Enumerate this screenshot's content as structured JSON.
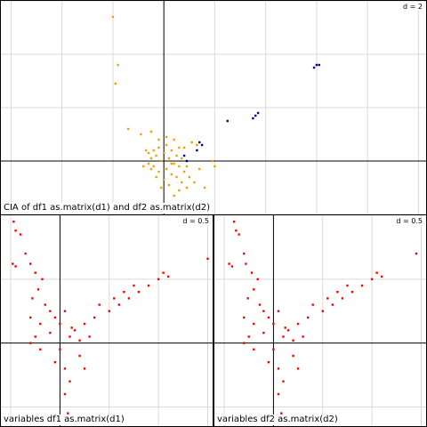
{
  "colors": {
    "background": "#ffffff",
    "grid": "#d9d9d9",
    "axis": "#000000",
    "sites_df1": "#f2a000",
    "sites_df2": "#00008b",
    "variables": "#ff0000"
  },
  "panels": [
    {
      "id": "cia",
      "caption": "CIA of df1 as.matrix(d1) and df2 as.matrix(d2)",
      "d_label": "d = 2"
    },
    {
      "id": "var1",
      "caption": "variables df1 as.matrix(d1)",
      "d_label": "d = 0.5"
    },
    {
      "id": "var2",
      "caption": "variables df2 as.matrix(d2)",
      "d_label": "d = 0.5"
    }
  ],
  "chart_data": [
    {
      "type": "scatter",
      "title": "CIA of df1 as.matrix(d1) and df2 as.matrix(d2)",
      "grid": true,
      "grid_step": 2,
      "xlim": [
        -6.4,
        10.3
      ],
      "ylim": [
        -2.0,
        6.0
      ],
      "series": [
        {
          "color": "#f2a000",
          "points": [
            [
              -2.0,
              5.4
            ],
            [
              -1.8,
              3.6
            ],
            [
              -1.9,
              2.9
            ],
            [
              -1.4,
              1.2
            ],
            [
              -0.9,
              1.0
            ],
            [
              -0.5,
              1.1
            ],
            [
              0.4,
              0.8
            ],
            [
              1.1,
              0.7
            ],
            [
              1.3,
              0.6
            ],
            [
              1.9,
              0.0
            ],
            [
              0.8,
              0.5
            ],
            [
              -0.6,
              0.3
            ],
            [
              -0.5,
              0.1
            ],
            [
              -0.4,
              -0.2
            ],
            [
              -0.3,
              0.2
            ],
            [
              -0.2,
              -0.4
            ],
            [
              -0.1,
              0.0
            ],
            [
              0.0,
              0.3
            ],
            [
              0.1,
              -0.3
            ],
            [
              0.2,
              0.1
            ],
            [
              0.3,
              -0.5
            ],
            [
              0.4,
              -0.1
            ],
            [
              0.5,
              -0.6
            ],
            [
              0.6,
              -0.2
            ],
            [
              0.7,
              -0.8
            ],
            [
              0.8,
              -0.4
            ],
            [
              0.9,
              -1.0
            ],
            [
              -0.6,
              -0.1
            ],
            [
              -0.4,
              0.4
            ],
            [
              -0.2,
              0.5
            ],
            [
              0.0,
              -0.7
            ],
            [
              0.2,
              -0.9
            ],
            [
              0.3,
              0.4
            ],
            [
              0.5,
              0.2
            ],
            [
              0.6,
              0.5
            ],
            [
              -0.3,
              -0.6
            ],
            [
              -0.5,
              -0.3
            ],
            [
              0.1,
              0.6
            ],
            [
              0.7,
              0.1
            ],
            [
              0.9,
              -0.2
            ],
            [
              1.0,
              -0.6
            ],
            [
              1.2,
              -0.8
            ],
            [
              0.4,
              -1.3
            ],
            [
              0.6,
              -1.1
            ],
            [
              -0.1,
              -1.0
            ],
            [
              -0.7,
              0.4
            ],
            [
              1.4,
              -0.3
            ],
            [
              1.6,
              -1.0
            ],
            [
              2.0,
              -0.2
            ],
            [
              -0.8,
              -0.2
            ],
            [
              0.3,
              -0.1
            ],
            [
              0.1,
              0.9
            ],
            [
              -0.2,
              0.8
            ]
          ]
        },
        {
          "color": "#00008b",
          "points": [
            [
              5.9,
              3.5
            ],
            [
              6.0,
              3.6
            ],
            [
              6.1,
              3.6
            ],
            [
              3.5,
              1.6
            ],
            [
              3.6,
              1.7
            ],
            [
              3.7,
              1.8
            ],
            [
              2.5,
              1.5
            ],
            [
              1.4,
              0.7
            ],
            [
              1.5,
              0.6
            ],
            [
              1.3,
              0.4
            ],
            [
              0.8,
              0.2
            ],
            [
              0.9,
              0.0
            ]
          ]
        }
      ]
    },
    {
      "type": "scatter",
      "title": "variables df1 as.matrix(d1)",
      "grid": true,
      "grid_step": 0.5,
      "xlim": [
        -0.6,
        1.55
      ],
      "ylim": [
        -0.65,
        1.0
      ],
      "series": [
        {
          "color": "#ff0000",
          "points": [
            [
              -0.47,
              0.95
            ],
            [
              -0.45,
              0.88
            ],
            [
              -0.4,
              0.85
            ],
            [
              -0.48,
              0.62
            ],
            [
              -0.45,
              0.6
            ],
            [
              -0.35,
              0.7
            ],
            [
              -0.3,
              0.62
            ],
            [
              -0.25,
              0.55
            ],
            [
              -0.18,
              0.5
            ],
            [
              -0.22,
              0.42
            ],
            [
              -0.28,
              0.35
            ],
            [
              -0.15,
              0.3
            ],
            [
              -0.1,
              0.25
            ],
            [
              -0.05,
              0.2
            ],
            [
              0.0,
              0.15
            ],
            [
              0.05,
              0.25
            ],
            [
              0.15,
              0.1
            ],
            [
              0.25,
              0.15
            ],
            [
              0.35,
              0.2
            ],
            [
              0.5,
              0.25
            ],
            [
              0.6,
              0.3
            ],
            [
              0.7,
              0.35
            ],
            [
              0.8,
              0.4
            ],
            [
              0.9,
              0.45
            ],
            [
              1.0,
              0.5
            ],
            [
              1.05,
              0.55
            ],
            [
              1.1,
              0.52
            ],
            [
              1.5,
              0.66
            ],
            [
              0.4,
              0.3
            ],
            [
              0.55,
              0.35
            ],
            [
              0.65,
              0.4
            ],
            [
              0.75,
              0.45
            ],
            [
              0.1,
              0.05
            ],
            [
              0.2,
              0.02
            ],
            [
              0.3,
              0.05
            ],
            [
              -0.3,
              0.2
            ],
            [
              -0.2,
              0.15
            ],
            [
              -0.25,
              0.05
            ],
            [
              -0.3,
              0.0
            ],
            [
              -0.2,
              -0.05
            ],
            [
              0.05,
              -0.2
            ],
            [
              0.1,
              -0.3
            ],
            [
              0.05,
              -0.4
            ],
            [
              0.08,
              -0.55
            ],
            [
              -0.05,
              -0.15
            ],
            [
              0.2,
              -0.1
            ],
            [
              0.25,
              -0.2
            ],
            [
              -0.1,
              0.08
            ],
            [
              0.0,
              -0.05
            ],
            [
              0.12,
              0.12
            ]
          ]
        }
      ]
    },
    {
      "type": "scatter",
      "title": "variables df2 as.matrix(d2)",
      "grid": true,
      "grid_step": 0.5,
      "xlim": [
        -0.6,
        1.55
      ],
      "ylim": [
        -0.65,
        1.0
      ],
      "series": [
        {
          "color": "#ff0000",
          "points": [
            [
              -0.4,
              0.95
            ],
            [
              -0.38,
              0.88
            ],
            [
              -0.35,
              0.85
            ],
            [
              -0.45,
              0.62
            ],
            [
              -0.42,
              0.6
            ],
            [
              -0.3,
              0.7
            ],
            [
              -0.28,
              0.62
            ],
            [
              -0.22,
              0.55
            ],
            [
              -0.16,
              0.5
            ],
            [
              -0.2,
              0.42
            ],
            [
              -0.26,
              0.35
            ],
            [
              -0.14,
              0.3
            ],
            [
              -0.1,
              0.25
            ],
            [
              -0.05,
              0.2
            ],
            [
              0.0,
              0.15
            ],
            [
              0.05,
              0.25
            ],
            [
              0.15,
              0.1
            ],
            [
              0.25,
              0.15
            ],
            [
              0.35,
              0.2
            ],
            [
              0.5,
              0.25
            ],
            [
              0.6,
              0.3
            ],
            [
              0.7,
              0.35
            ],
            [
              0.8,
              0.4
            ],
            [
              0.9,
              0.45
            ],
            [
              1.0,
              0.5
            ],
            [
              1.05,
              0.55
            ],
            [
              1.1,
              0.52
            ],
            [
              1.45,
              0.7
            ],
            [
              0.4,
              0.3
            ],
            [
              0.55,
              0.35
            ],
            [
              0.65,
              0.4
            ],
            [
              0.75,
              0.45
            ],
            [
              0.1,
              0.05
            ],
            [
              0.2,
              0.02
            ],
            [
              0.3,
              0.05
            ],
            [
              -0.3,
              0.2
            ],
            [
              -0.2,
              0.15
            ],
            [
              -0.25,
              0.05
            ],
            [
              -0.3,
              0.0
            ],
            [
              -0.2,
              -0.05
            ],
            [
              0.05,
              -0.2
            ],
            [
              0.1,
              -0.3
            ],
            [
              0.05,
              -0.4
            ],
            [
              0.08,
              -0.55
            ],
            [
              -0.05,
              -0.15
            ],
            [
              0.2,
              -0.1
            ],
            [
              0.25,
              -0.2
            ],
            [
              -0.1,
              0.08
            ],
            [
              0.0,
              -0.05
            ],
            [
              0.12,
              0.12
            ]
          ]
        }
      ]
    }
  ]
}
